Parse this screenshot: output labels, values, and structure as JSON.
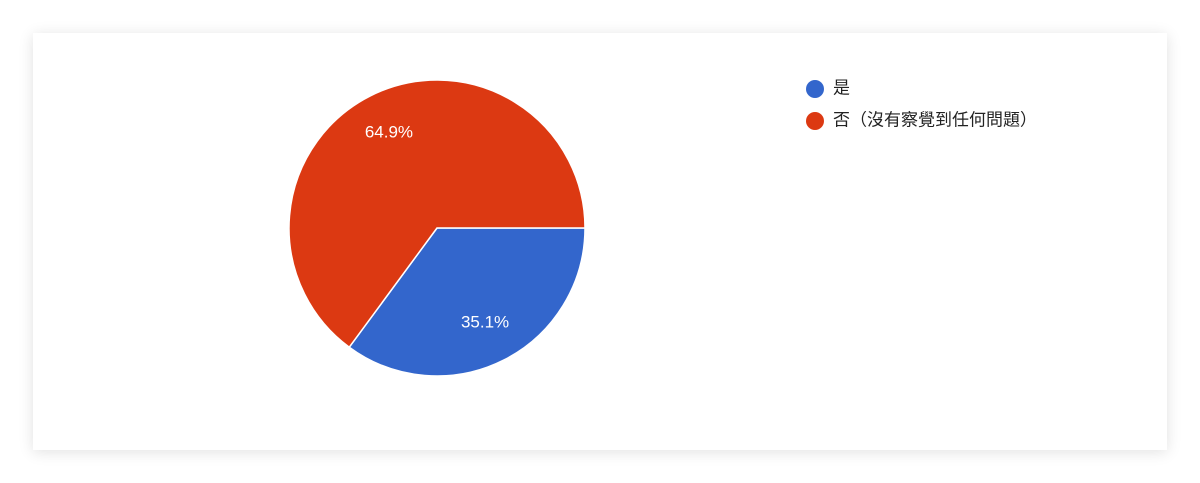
{
  "chart_data": {
    "type": "pie",
    "categories": [
      "是",
      "否（沒有察覺到任何問題）"
    ],
    "values": [
      35.1,
      64.9
    ],
    "value_labels": [
      "35.1%",
      "64.9%"
    ],
    "colors": [
      "#3366cc",
      "#dc3912"
    ],
    "legend": "top-right"
  }
}
